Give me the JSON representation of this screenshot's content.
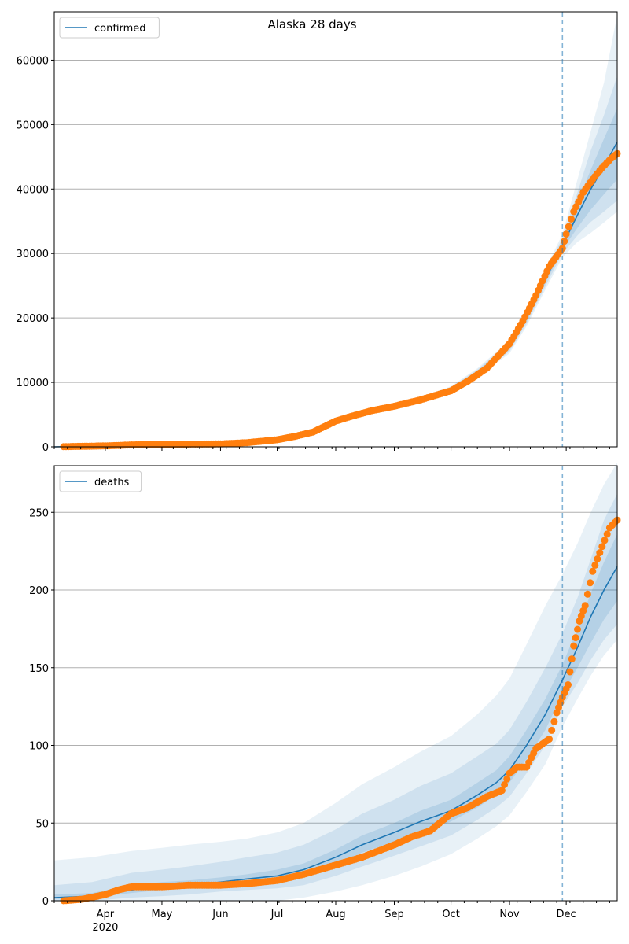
{
  "title": "Alaska 28 days",
  "colors": {
    "line": "#1f77b4",
    "points": "#ff7f0e",
    "band": "#1f77b4",
    "grid": "#b0b0b0",
    "forecast_line": "#1f77b4"
  },
  "chart_data": [
    {
      "type": "line",
      "legend": "confirmed",
      "legend_position": "top-left",
      "grid": "horizontal",
      "xlim": [
        "2020-03-05",
        "2020-12-28"
      ],
      "ylim": [
        0,
        67500
      ],
      "yticks": [
        0,
        10000,
        20000,
        30000,
        40000,
        50000,
        60000
      ],
      "forecast_start": "2020-11-29",
      "series": [
        {
          "name": "confirmed",
          "role": "model",
          "x": [
            "2020-03-05",
            "2020-04-01",
            "2020-05-01",
            "2020-06-01",
            "2020-06-15",
            "2020-07-01",
            "2020-07-15",
            "2020-08-01",
            "2020-08-15",
            "2020-09-01",
            "2020-09-15",
            "2020-10-01",
            "2020-10-15",
            "2020-11-01",
            "2020-11-10",
            "2020-11-20",
            "2020-11-29",
            "2020-12-07",
            "2020-12-14",
            "2020-12-21",
            "2020-12-28"
          ],
          "y": [
            0,
            150,
            390,
            480,
            700,
            1180,
            1900,
            3900,
            5100,
            6300,
            7400,
            8900,
            11500,
            15500,
            20000,
            26000,
            31200,
            36000,
            40000,
            43500,
            47300
          ],
          "band_inner": [
            [
              0,
              0
            ],
            [
              120,
              180
            ],
            [
              350,
              430
            ],
            [
              440,
              520
            ],
            [
              650,
              750
            ],
            [
              1100,
              1260
            ],
            [
              1800,
              2000
            ],
            [
              3750,
              4050
            ],
            [
              4950,
              5250
            ],
            [
              6150,
              6450
            ],
            [
              7250,
              7550
            ],
            [
              8700,
              9100
            ],
            [
              11200,
              11800
            ],
            [
              15100,
              15900
            ],
            [
              19500,
              20500
            ],
            [
              25400,
              26600
            ],
            [
              30600,
              31800
            ],
            [
              34000,
              38000
            ],
            [
              36800,
              43000
            ],
            [
              39200,
              47800
            ],
            [
              41500,
              52500
            ]
          ],
          "band_mid": [
            [
              0,
              0
            ],
            [
              100,
              200
            ],
            [
              320,
              460
            ],
            [
              410,
              550
            ],
            [
              620,
              780
            ],
            [
              1050,
              1310
            ],
            [
              1730,
              2070
            ],
            [
              3650,
              4150
            ],
            [
              4850,
              5350
            ],
            [
              6050,
              6550
            ],
            [
              7150,
              7650
            ],
            [
              8550,
              9250
            ],
            [
              11000,
              12000
            ],
            [
              14800,
              16200
            ],
            [
              19100,
              20900
            ],
            [
              24900,
              27100
            ],
            [
              30000,
              32400
            ],
            [
              32800,
              39500
            ],
            [
              34900,
              46000
            ],
            [
              36500,
              51500
            ],
            [
              38200,
              57500
            ]
          ],
          "band_outer": [
            [
              0,
              0
            ],
            [
              80,
              220
            ],
            [
              300,
              490
            ],
            [
              380,
              580
            ],
            [
              590,
              820
            ],
            [
              1000,
              1360
            ],
            [
              1660,
              2140
            ],
            [
              3550,
              4250
            ],
            [
              4750,
              5450
            ],
            [
              5950,
              6650
            ],
            [
              7050,
              7750
            ],
            [
              8400,
              9400
            ],
            [
              10800,
              12200
            ],
            [
              14500,
              16500
            ],
            [
              18700,
              21300
            ],
            [
              24400,
              27600
            ],
            [
              29400,
              33000
            ],
            [
              31800,
              41500
            ],
            [
              33200,
              49000
            ],
            [
              34800,
              56500
            ],
            [
              36500,
              67000
            ]
          ]
        },
        {
          "name": "observed",
          "role": "points",
          "x": [
            "2020-03-10",
            "2020-03-20",
            "2020-04-01",
            "2020-04-15",
            "2020-05-01",
            "2020-05-15",
            "2020-06-01",
            "2020-06-15",
            "2020-07-01",
            "2020-07-10",
            "2020-07-20",
            "2020-08-01",
            "2020-08-10",
            "2020-08-20",
            "2020-09-01",
            "2020-09-15",
            "2020-10-01",
            "2020-10-10",
            "2020-10-20",
            "2020-11-01",
            "2020-11-08",
            "2020-11-15",
            "2020-11-22",
            "2020-11-29",
            "2020-12-01",
            "2020-12-05",
            "2020-12-10",
            "2020-12-15",
            "2020-12-20",
            "2020-12-25",
            "2020-12-28"
          ],
          "y": [
            30,
            80,
            150,
            300,
            400,
            420,
            450,
            650,
            1100,
            1600,
            2300,
            4000,
            4800,
            5600,
            6300,
            7300,
            8700,
            10200,
            12200,
            16000,
            19500,
            23500,
            28000,
            30800,
            33000,
            36500,
            39500,
            41500,
            43300,
            44800,
            45500
          ]
        }
      ]
    },
    {
      "type": "line",
      "legend": "deaths",
      "legend_position": "top-left",
      "grid": "horizontal",
      "xlim": [
        "2020-03-05",
        "2020-12-28"
      ],
      "ylim": [
        0,
        280
      ],
      "yticks": [
        0,
        50,
        100,
        150,
        200,
        250
      ],
      "forecast_start": "2020-11-29",
      "series": [
        {
          "name": "deaths",
          "role": "model",
          "x": [
            "2020-03-05",
            "2020-03-25",
            "2020-04-15",
            "2020-05-01",
            "2020-05-15",
            "2020-06-01",
            "2020-06-15",
            "2020-07-01",
            "2020-07-15",
            "2020-08-01",
            "2020-08-15",
            "2020-09-01",
            "2020-09-15",
            "2020-10-01",
            "2020-10-15",
            "2020-10-25",
            "2020-11-01",
            "2020-11-10",
            "2020-11-20",
            "2020-11-29",
            "2020-12-07",
            "2020-12-14",
            "2020-12-21",
            "2020-12-28"
          ],
          "y": [
            2,
            3,
            7,
            9,
            10,
            12,
            14,
            16,
            20,
            28,
            36,
            44,
            51,
            58,
            68,
            76,
            84,
            100,
            120,
            142,
            163,
            183,
            200,
            215
          ],
          "band_inner": [
            [
              1,
              4
            ],
            [
              2,
              5
            ],
            [
              5,
              10
            ],
            [
              7,
              12
            ],
            [
              8,
              13
            ],
            [
              10,
              15
            ],
            [
              11,
              17
            ],
            [
              13,
              20
            ],
            [
              16,
              24
            ],
            [
              23,
              33
            ],
            [
              31,
              42
            ],
            [
              38,
              50
            ],
            [
              44,
              58
            ],
            [
              51,
              65
            ],
            [
              60,
              76
            ],
            [
              68,
              84
            ],
            [
              76,
              93
            ],
            [
              91,
              110
            ],
            [
              110,
              130
            ],
            [
              133,
              152
            ],
            [
              150,
              175
            ],
            [
              166,
              198
            ],
            [
              181,
              218
            ],
            [
              193,
              236
            ]
          ],
          "band_mid": [
            [
              0,
              10
            ],
            [
              0,
              12
            ],
            [
              2,
              18
            ],
            [
              3,
              20
            ],
            [
              4,
              22
            ],
            [
              6,
              25
            ],
            [
              7,
              28
            ],
            [
              8,
              31
            ],
            [
              10,
              36
            ],
            [
              16,
              46
            ],
            [
              22,
              56
            ],
            [
              29,
              65
            ],
            [
              35,
              74
            ],
            [
              42,
              82
            ],
            [
              52,
              93
            ],
            [
              60,
              101
            ],
            [
              67,
              110
            ],
            [
              82,
              128
            ],
            [
              100,
              150
            ],
            [
              125,
              172
            ],
            [
              140,
              195
            ],
            [
              155,
              220
            ],
            [
              168,
              245
            ],
            [
              178,
              262
            ]
          ],
          "band_outer": [
            [
              0,
              26
            ],
            [
              0,
              28
            ],
            [
              0,
              32
            ],
            [
              0,
              34
            ],
            [
              0,
              36
            ],
            [
              0,
              38
            ],
            [
              0,
              40
            ],
            [
              0,
              44
            ],
            [
              2,
              50
            ],
            [
              6,
              63
            ],
            [
              10,
              75
            ],
            [
              16,
              86
            ],
            [
              22,
              96
            ],
            [
              30,
              106
            ],
            [
              40,
              120
            ],
            [
              48,
              132
            ],
            [
              55,
              143
            ],
            [
              70,
              165
            ],
            [
              88,
              190
            ],
            [
              112,
              210
            ],
            [
              130,
              230
            ],
            [
              145,
              250
            ],
            [
              158,
              268
            ],
            [
              168,
              282
            ]
          ]
        },
        {
          "name": "observed",
          "role": "points",
          "x": [
            "2020-03-10",
            "2020-03-20",
            "2020-03-28",
            "2020-04-01",
            "2020-04-08",
            "2020-04-15",
            "2020-05-01",
            "2020-05-15",
            "2020-06-01",
            "2020-06-15",
            "2020-07-01",
            "2020-07-15",
            "2020-08-01",
            "2020-08-15",
            "2020-09-01",
            "2020-09-10",
            "2020-09-20",
            "2020-10-01",
            "2020-10-10",
            "2020-10-20",
            "2020-10-28",
            "2020-11-01",
            "2020-11-05",
            "2020-11-10",
            "2020-11-15",
            "2020-11-22",
            "2020-11-26",
            "2020-11-29",
            "2020-12-02",
            "2020-12-05",
            "2020-12-08",
            "2020-12-11",
            "2020-12-15",
            "2020-12-20",
            "2020-12-24",
            "2020-12-28"
          ],
          "y": [
            0,
            1,
            3,
            4,
            7,
            9,
            9,
            10,
            10,
            11,
            13,
            17,
            23,
            28,
            36,
            41,
            45,
            56,
            60,
            67,
            71,
            82,
            86,
            86,
            98,
            104,
            121,
            131,
            139,
            164,
            180,
            190,
            212,
            228,
            240,
            245
          ]
        }
      ]
    }
  ],
  "x_ticks": [
    {
      "date": "2020-04-01",
      "label": "Apr"
    },
    {
      "date": "2020-05-01",
      "label": "May"
    },
    {
      "date": "2020-06-01",
      "label": "Jun"
    },
    {
      "date": "2020-07-01",
      "label": "Jul"
    },
    {
      "date": "2020-08-01",
      "label": "Aug"
    },
    {
      "date": "2020-09-01",
      "label": "Sep"
    },
    {
      "date": "2020-10-01",
      "label": "Oct"
    },
    {
      "date": "2020-11-01",
      "label": "Nov"
    },
    {
      "date": "2020-12-01",
      "label": "Dec"
    }
  ],
  "year_label": "2020"
}
